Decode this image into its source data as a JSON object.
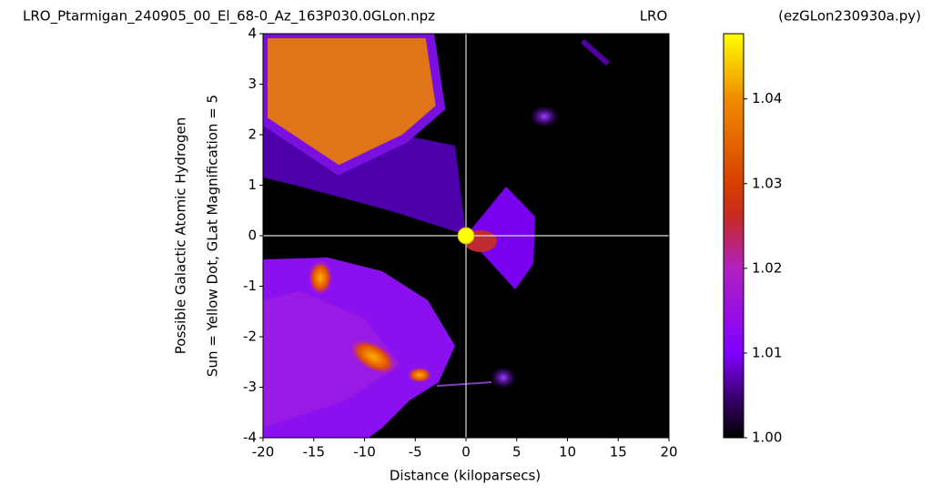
{
  "chart_data": {
    "type": "heatmap",
    "title": "LRO_Ptarmigan_240905_00_El_68-0_Az_163P030.0GLon.npz",
    "subtitle": "LRO",
    "note": "(ezGLon230930a.py)",
    "ylabel": [
      "Possible Galactic Atomic Hydrogen",
      "Sun = Yellow Dot, GLat Magnification = 5"
    ],
    "xlabel": "Distance (kiloparsecs)",
    "xlim": [
      -20,
      20
    ],
    "xticks": [
      -20,
      -15,
      -10,
      -5,
      0,
      5,
      10,
      15,
      20
    ],
    "ylim": [
      -4,
      4
    ],
    "yticks": [
      -4,
      -3,
      -2,
      -1,
      0,
      1,
      2,
      3,
      4
    ],
    "sun": {
      "x": 0,
      "y": 0,
      "color": "#ffff00"
    },
    "colorbar": {
      "lim": [
        1.0,
        1.0477
      ],
      "ticks": [
        {
          "value": 1.0,
          "label": "1.00"
        },
        1.01,
        1.02,
        1.03,
        1.04
      ]
    }
  }
}
